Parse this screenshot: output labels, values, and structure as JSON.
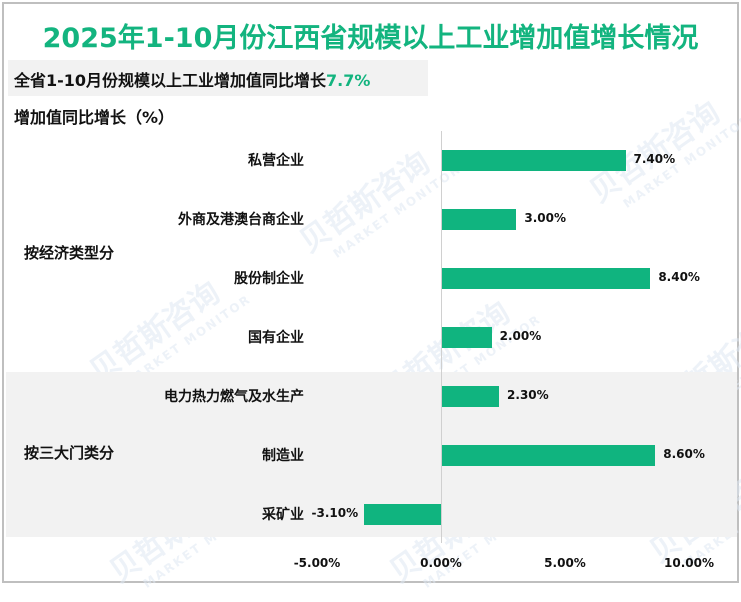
{
  "chart_data": {
    "type": "bar",
    "orientation": "horizontal",
    "title": "2025年1-10月份江西省规模以上工业增加值增长情况",
    "subtitle": "全省1-10月份规模以上工业增加值同比增长7.7%",
    "subtitle_prefix": "全省1-10月份规模以上工业增加值同比增长",
    "subtitle_highlight": "7.7%",
    "ylabel": "增加值同比增长（%）",
    "xlabel": "",
    "xlim": [
      -5,
      10
    ],
    "xticks": [
      "-5.00%",
      "0.00%",
      "5.00%",
      "10.00%"
    ],
    "grid": false,
    "groups": [
      {
        "label": "按经济类型分",
        "categories": [
          "私营企业",
          "外商及港澳台商企业",
          "股份制企业",
          "国有企业"
        ],
        "values": [
          7.4,
          3.0,
          8.4,
          2.0
        ]
      },
      {
        "label": "按三大门类分",
        "categories": [
          "电力热力燃气及水生产",
          "制造业",
          "采矿业"
        ],
        "values": [
          2.3,
          8.6,
          -3.1
        ]
      }
    ],
    "categories": [
      "私营企业",
      "外商及港澳台商企业",
      "股份制企业",
      "国有企业",
      "电力热力燃气及水生产",
      "制造业",
      "采矿业"
    ],
    "values": [
      7.4,
      3.0,
      8.4,
      2.0,
      2.3,
      8.6,
      -3.1
    ],
    "value_labels": [
      "7.40%",
      "3.00%",
      "8.40%",
      "2.00%",
      "2.30%",
      "8.60%",
      "-3.10%"
    ],
    "bar_color": "#10b47f"
  },
  "colors": {
    "accent": "#13b47f",
    "bar": "#10b47f",
    "band": "#f2f2f2"
  },
  "watermark": {
    "cn": "贝哲斯咨询",
    "en": "MARKET MONITOR"
  }
}
